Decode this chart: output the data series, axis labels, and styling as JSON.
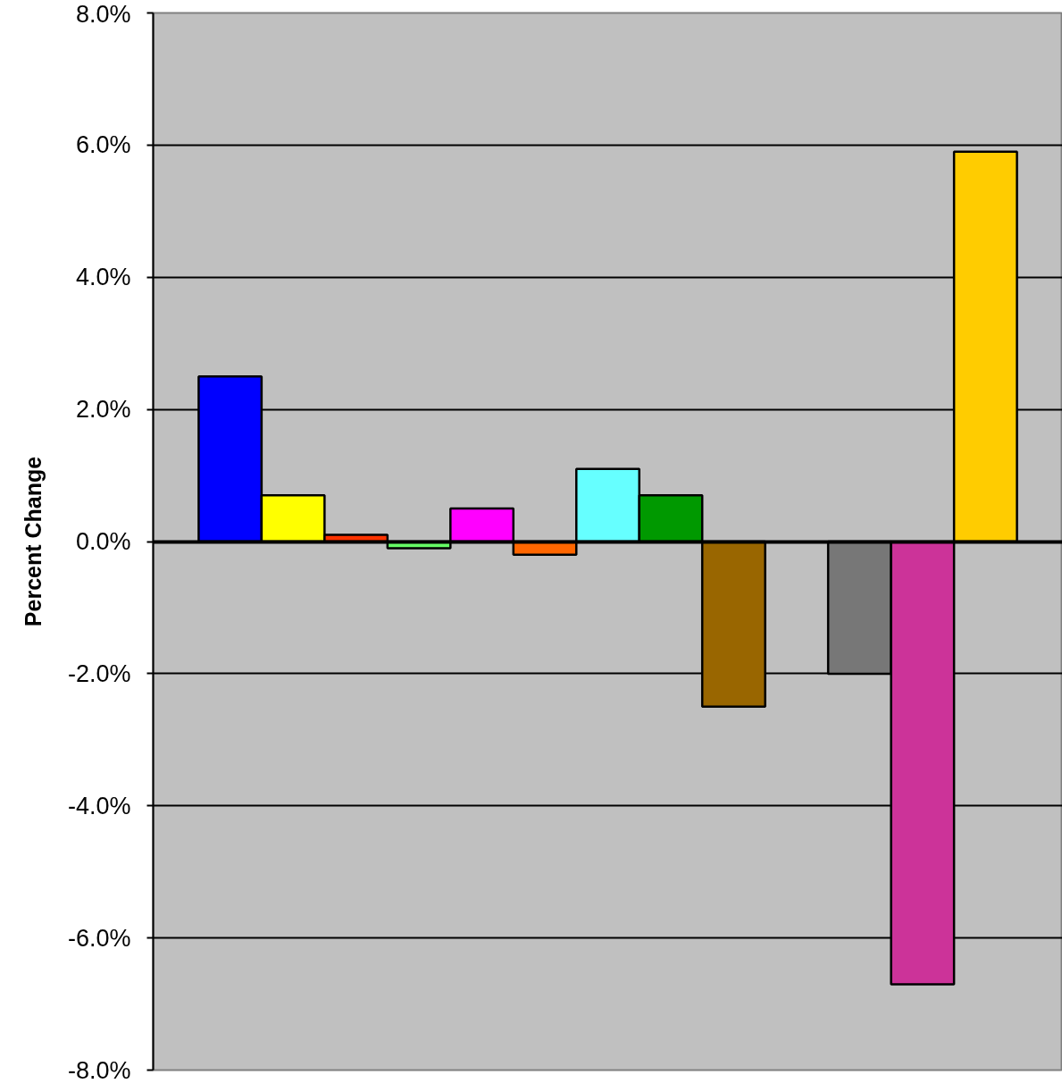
{
  "chart_data": {
    "type": "bar",
    "ylabel": "Percent Change",
    "categories": [
      null
    ],
    "series": [
      {
        "color": "#0000ff",
        "values": [
          2.5
        ]
      },
      {
        "color": "#ffff00",
        "values": [
          0.7
        ]
      },
      {
        "color": "#ff3300",
        "values": [
          0.1
        ]
      },
      {
        "color": "#66ff66",
        "values": [
          -0.1
        ]
      },
      {
        "color": "#ff00ff",
        "values": [
          0.5
        ]
      },
      {
        "color": "#ff6600",
        "values": [
          -0.2
        ]
      },
      {
        "color": "#66ffff",
        "values": [
          1.1
        ]
      },
      {
        "color": "#009900",
        "values": [
          0.7
        ]
      },
      {
        "color": "#996600",
        "values": [
          -2.5
        ]
      },
      {
        "values": [
          null
        ]
      },
      {
        "color": "#777777",
        "values": [
          -2.0
        ]
      },
      {
        "color": "#cc3399",
        "values": [
          -6.7
        ]
      },
      {
        "color": "#ffcc00",
        "values": [
          5.9
        ]
      }
    ],
    "ylim": [
      -8,
      8
    ],
    "yticks": [
      {
        "value": -8,
        "label": "-8.0%"
      },
      {
        "value": -6,
        "label": "-6.0%"
      },
      {
        "value": -4,
        "label": "-4.0%"
      },
      {
        "value": -2,
        "label": "-2.0%"
      },
      {
        "value": 0,
        "label": "0.0%"
      },
      {
        "value": 2,
        "label": "2.0%"
      },
      {
        "value": 4,
        "label": "4.0%"
      },
      {
        "value": 6,
        "label": "6.0%"
      },
      {
        "value": 8,
        "label": "8.0%"
      }
    ],
    "grid": "y"
  }
}
